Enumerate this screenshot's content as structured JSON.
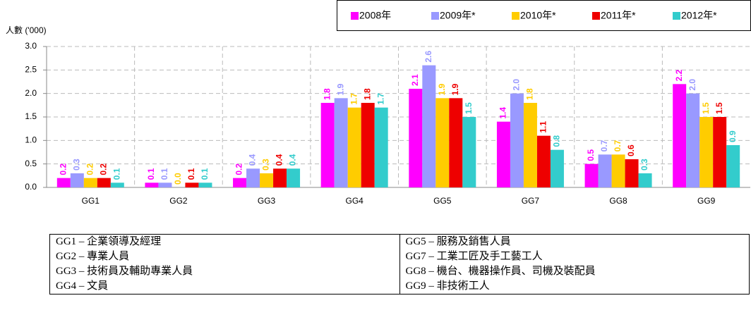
{
  "chart_data": {
    "type": "bar",
    "y_label": "人數 ('000)",
    "categories": [
      "GG1",
      "GG2",
      "GG3",
      "GG4",
      "GG5",
      "GG7",
      "GG8",
      "GG9"
    ],
    "series": [
      {
        "name": "2008年",
        "color": "#ff00ff",
        "values": [
          0.2,
          0.1,
          0.2,
          1.8,
          2.1,
          1.4,
          0.5,
          2.2
        ],
        "value_labels": [
          "0.2",
          "0.1",
          "0.2",
          "1.8",
          "2.1",
          "1.4",
          "0.5",
          "2.2"
        ]
      },
      {
        "name": "2009年*",
        "color": "#9999ff",
        "values": [
          0.3,
          0.1,
          0.4,
          1.9,
          2.6,
          2.0,
          0.7,
          2.0
        ],
        "value_labels": [
          "0.3",
          "0.1",
          "0.4",
          "1.9",
          "2.6",
          "2.0",
          "0.7",
          "2.0"
        ]
      },
      {
        "name": "2010年*",
        "color": "#ffcc00",
        "values": [
          0.2,
          0.0,
          0.3,
          1.7,
          1.9,
          1.8,
          0.7,
          1.5
        ],
        "value_labels": [
          "0.2",
          "0.0",
          "0.3",
          "1.7",
          "1.9",
          "1.8",
          "0.7",
          "1.5"
        ]
      },
      {
        "name": "2011年*",
        "color": "#ee0000",
        "values": [
          0.2,
          0.1,
          0.4,
          1.8,
          1.9,
          1.1,
          0.6,
          1.5
        ],
        "value_labels": [
          "0.2",
          "0.1",
          "0.4",
          "1.8",
          "1.9",
          "1.1",
          "0.6",
          "1.5"
        ]
      },
      {
        "name": "2012年*",
        "color": "#33cccc",
        "values": [
          0.1,
          0.1,
          0.4,
          1.7,
          1.5,
          0.8,
          0.3,
          0.9
        ],
        "value_labels": [
          "0.1",
          "0.1",
          "0.4",
          "1.7",
          "1.5",
          "0.8",
          "0.3",
          "0.9"
        ]
      }
    ],
    "ylim": [
      0,
      3
    ],
    "yticks": [
      {
        "value": 0,
        "label": "0.0"
      },
      {
        "value": 0.5,
        "label": "0.5"
      },
      {
        "value": 1,
        "label": "1.0"
      },
      {
        "value": 1.5,
        "label": "1.5"
      },
      {
        "value": 2,
        "label": "2.0"
      },
      {
        "value": 2.5,
        "label": "2.5"
      },
      {
        "value": 3,
        "label": "3.0"
      }
    ],
    "grid": true
  },
  "table": {
    "rows": [
      [
        "GG1 – 企業領導及經理",
        "GG5 – 服務及銷售人員"
      ],
      [
        "GG2 – 專業人員",
        "GG7 – 工業工匠及手工藝工人"
      ],
      [
        "GG3 – 技術員及輔助專業人員",
        "GG8 – 機台、機器操作員、司機及裝配員"
      ],
      [
        "GG4 – 文員",
        "GG9 – 非技術工人"
      ]
    ]
  }
}
